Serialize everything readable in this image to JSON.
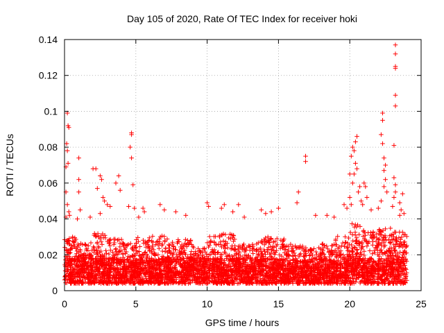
{
  "chart_data": {
    "type": "scatter",
    "title": "Day 105 of 2020, Rate Of TEC Index for receiver hoki",
    "xlabel": "GPS time / hours",
    "ylabel": "ROTI / TECUs",
    "xlim": [
      0,
      25
    ],
    "ylim": [
      0,
      0.14
    ],
    "x_ticks": [
      0,
      5,
      10,
      15,
      20,
      25
    ],
    "y_ticks": [
      0,
      0.02,
      0.04,
      0.06,
      0.08,
      0.1,
      0.12,
      0.14
    ],
    "x_tick_labels": [
      "0",
      "5",
      "10",
      "15",
      "20",
      "25"
    ],
    "y_tick_labels": [
      "0",
      "0.02",
      "0.04",
      "0.06",
      "0.08",
      "0.1",
      "0.12",
      "0.14"
    ],
    "grid": true,
    "marker": "+",
    "marker_color": "#ff0000",
    "series": [
      {
        "name": "ROTI",
        "points": [
          [
            0.2,
            0.099
          ],
          [
            0.25,
            0.092
          ],
          [
            0.3,
            0.091
          ],
          [
            0.15,
            0.082
          ],
          [
            0.2,
            0.078
          ],
          [
            0.25,
            0.071
          ],
          [
            0.1,
            0.069
          ],
          [
            0.1,
            0.055
          ],
          [
            0.2,
            0.048
          ],
          [
            0.3,
            0.044
          ],
          [
            0.35,
            0.042
          ],
          [
            0.1,
            0.041
          ],
          [
            1.0,
            0.074
          ],
          [
            1.0,
            0.062
          ],
          [
            1.0,
            0.055
          ],
          [
            1.1,
            0.045
          ],
          [
            0.9,
            0.04
          ],
          [
            2.0,
            0.068
          ],
          [
            2.2,
            0.068
          ],
          [
            2.5,
            0.064
          ],
          [
            2.6,
            0.062
          ],
          [
            2.3,
            0.057
          ],
          [
            2.7,
            0.052
          ],
          [
            2.8,
            0.05
          ],
          [
            3.0,
            0.048
          ],
          [
            3.2,
            0.047
          ],
          [
            2.5,
            0.043
          ],
          [
            1.8,
            0.041
          ],
          [
            3.8,
            0.064
          ],
          [
            3.6,
            0.06
          ],
          [
            3.9,
            0.056
          ],
          [
            4.7,
            0.088
          ],
          [
            4.7,
            0.087
          ],
          [
            4.6,
            0.08
          ],
          [
            4.7,
            0.074
          ],
          [
            4.8,
            0.059
          ],
          [
            4.5,
            0.047
          ],
          [
            4.9,
            0.046
          ],
          [
            5.5,
            0.046
          ],
          [
            5.6,
            0.044
          ],
          [
            5.2,
            0.041
          ],
          [
            6.7,
            0.048
          ],
          [
            7.0,
            0.045
          ],
          [
            7.8,
            0.044
          ],
          [
            8.5,
            0.042
          ],
          [
            10.0,
            0.049
          ],
          [
            10.1,
            0.047
          ],
          [
            11.0,
            0.046
          ],
          [
            11.2,
            0.048
          ],
          [
            12.2,
            0.048
          ],
          [
            11.8,
            0.044
          ],
          [
            12.6,
            0.041
          ],
          [
            13.8,
            0.045
          ],
          [
            14.1,
            0.043
          ],
          [
            14.5,
            0.044
          ],
          [
            15.0,
            0.046
          ],
          [
            16.4,
            0.055
          ],
          [
            16.9,
            0.075
          ],
          [
            16.9,
            0.072
          ],
          [
            16.3,
            0.049
          ],
          [
            17.6,
            0.042
          ],
          [
            18.4,
            0.042
          ],
          [
            18.9,
            0.041
          ],
          [
            19.6,
            0.048
          ],
          [
            19.8,
            0.046
          ],
          [
            20.0,
            0.065
          ],
          [
            20.1,
            0.075
          ],
          [
            20.2,
            0.08
          ],
          [
            20.3,
            0.078
          ],
          [
            20.4,
            0.083
          ],
          [
            20.5,
            0.086
          ],
          [
            20.4,
            0.071
          ],
          [
            20.5,
            0.068
          ],
          [
            20.3,
            0.065
          ],
          [
            20.2,
            0.06
          ],
          [
            20.6,
            0.055
          ],
          [
            20.7,
            0.058
          ],
          [
            21.0,
            0.06
          ],
          [
            21.1,
            0.058
          ],
          [
            20.8,
            0.05
          ],
          [
            20.9,
            0.048
          ],
          [
            21.2,
            0.052
          ],
          [
            20.0,
            0.052
          ],
          [
            20.1,
            0.048
          ],
          [
            21.5,
            0.045
          ],
          [
            22.3,
            0.099
          ],
          [
            22.3,
            0.095
          ],
          [
            22.2,
            0.087
          ],
          [
            22.3,
            0.082
          ],
          [
            22.4,
            0.074
          ],
          [
            22.5,
            0.07
          ],
          [
            22.4,
            0.067
          ],
          [
            22.5,
            0.062
          ],
          [
            22.4,
            0.058
          ],
          [
            22.6,
            0.055
          ],
          [
            22.2,
            0.05
          ],
          [
            22.0,
            0.046
          ],
          [
            23.2,
            0.137
          ],
          [
            23.2,
            0.132
          ],
          [
            23.2,
            0.125
          ],
          [
            23.2,
            0.124
          ],
          [
            23.2,
            0.109
          ],
          [
            23.2,
            0.103
          ],
          [
            23.1,
            0.081
          ],
          [
            23.1,
            0.063
          ],
          [
            23.2,
            0.059
          ],
          [
            23.2,
            0.055
          ],
          [
            23.1,
            0.052
          ],
          [
            23.0,
            0.047
          ],
          [
            23.7,
            0.054
          ],
          [
            23.5,
            0.049
          ],
          [
            23.6,
            0.045
          ],
          [
            23.8,
            0.043
          ],
          [
            23.5,
            0.042
          ]
        ]
      }
    ],
    "dense_band": [
      {
        "x": [
          0.0,
          1.0
        ],
        "y": [
          0.004,
          0.03
        ]
      },
      {
        "x": [
          1.0,
          2.0
        ],
        "y": [
          0.004,
          0.027
        ]
      },
      {
        "x": [
          2.0,
          3.0
        ],
        "y": [
          0.004,
          0.032
        ]
      },
      {
        "x": [
          3.0,
          4.0
        ],
        "y": [
          0.004,
          0.029
        ]
      },
      {
        "x": [
          4.0,
          5.0
        ],
        "y": [
          0.004,
          0.027
        ]
      },
      {
        "x": [
          5.0,
          6.0
        ],
        "y": [
          0.004,
          0.03
        ]
      },
      {
        "x": [
          6.0,
          7.0
        ],
        "y": [
          0.004,
          0.031
        ]
      },
      {
        "x": [
          7.0,
          8.0
        ],
        "y": [
          0.004,
          0.029
        ]
      },
      {
        "x": [
          8.0,
          9.0
        ],
        "y": [
          0.004,
          0.029
        ]
      },
      {
        "x": [
          9.0,
          10.0
        ],
        "y": [
          0.004,
          0.024
        ]
      },
      {
        "x": [
          10.0,
          11.0
        ],
        "y": [
          0.004,
          0.031
        ]
      },
      {
        "x": [
          11.0,
          12.0
        ],
        "y": [
          0.004,
          0.032
        ]
      },
      {
        "x": [
          12.0,
          13.0
        ],
        "y": [
          0.004,
          0.026
        ]
      },
      {
        "x": [
          13.0,
          14.0
        ],
        "y": [
          0.004,
          0.028
        ]
      },
      {
        "x": [
          14.0,
          15.0
        ],
        "y": [
          0.004,
          0.03
        ]
      },
      {
        "x": [
          15.0,
          16.0
        ],
        "y": [
          0.004,
          0.029
        ]
      },
      {
        "x": [
          16.0,
          17.0
        ],
        "y": [
          0.004,
          0.025
        ]
      },
      {
        "x": [
          17.0,
          18.0
        ],
        "y": [
          0.004,
          0.024
        ]
      },
      {
        "x": [
          18.0,
          19.0
        ],
        "y": [
          0.004,
          0.027
        ]
      },
      {
        "x": [
          19.0,
          20.0
        ],
        "y": [
          0.004,
          0.031
        ]
      },
      {
        "x": [
          20.0,
          21.0
        ],
        "y": [
          0.004,
          0.038
        ]
      },
      {
        "x": [
          21.0,
          22.0
        ],
        "y": [
          0.004,
          0.033
        ]
      },
      {
        "x": [
          22.0,
          23.0
        ],
        "y": [
          0.004,
          0.035
        ]
      },
      {
        "x": [
          23.0,
          24.0
        ],
        "y": [
          0.004,
          0.033
        ]
      }
    ]
  }
}
